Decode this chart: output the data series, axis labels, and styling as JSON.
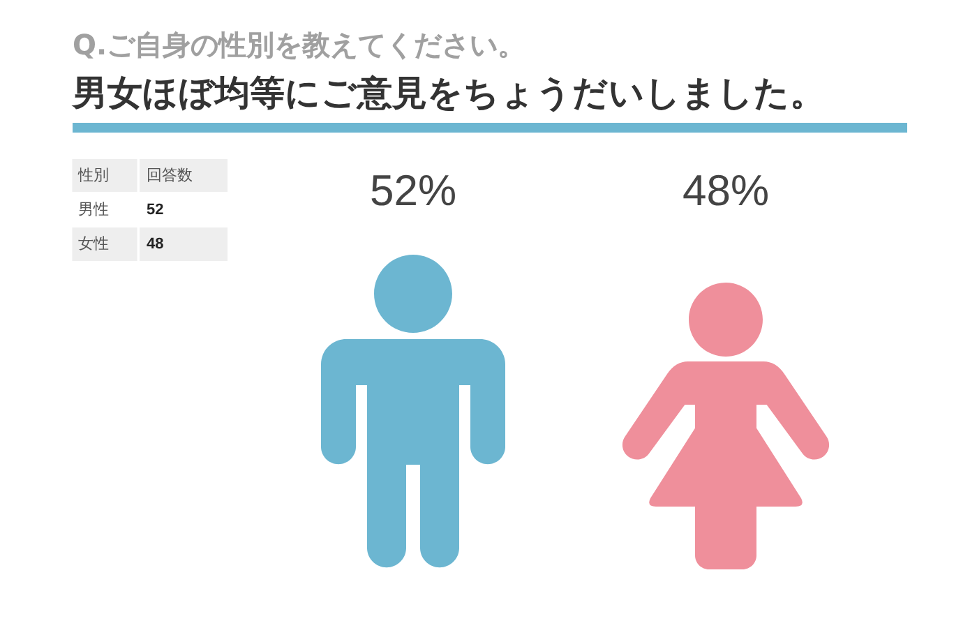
{
  "chart_data": [
    {
      "type": "other",
      "subtitle": "Q.ご自身の性別を教えてください。",
      "title": "男女ほぼ均等にご意見をちょうだいしました。",
      "xlabel": "性別",
      "ylabel": "回答数",
      "categories": [
        "男性",
        "女性"
      ],
      "values": [
        52,
        48
      ],
      "data_labels": true
    },
    {
      "type": "other",
      "values": [
        52,
        48
      ],
      "value_labels": [
        "52%",
        "48%"
      ],
      "colors": [
        "#6cb6d1",
        "#ef8f9b"
      ]
    }
  ]
}
